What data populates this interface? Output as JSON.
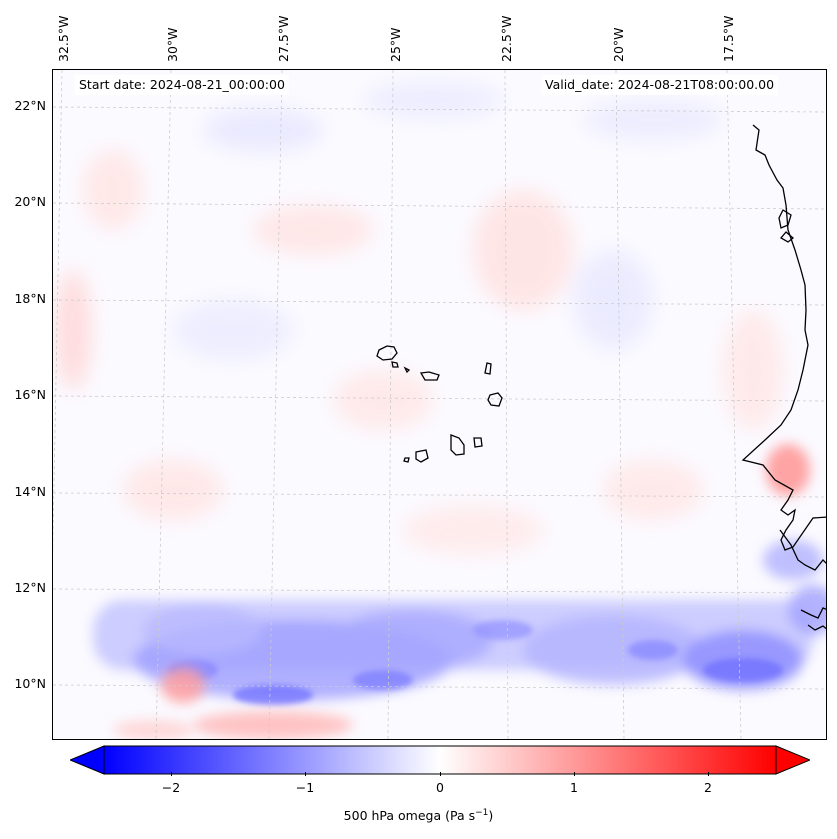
{
  "map": {
    "lon_labels": [
      "32.5°W",
      "30°W",
      "27.5°W",
      "25°W",
      "22.5°W",
      "20°W",
      "17.5°W"
    ],
    "lat_labels": [
      "22°N",
      "20°N",
      "18°N",
      "16°N",
      "14°N",
      "12°N",
      "10°N"
    ],
    "start_date": "Start date: 2024-08-21_00:00:00",
    "valid_date": "Valid_date: 2024-08-21T08:00:00.00",
    "variable": "500 hPa omega",
    "units": "Pa s",
    "units_exponent": "−1"
  },
  "colorbar": {
    "range": [
      -2.5,
      2.5
    ],
    "extend": "both",
    "tick_labels": [
      "−2",
      "−1",
      "0",
      "1",
      "2"
    ],
    "tick_values": [
      -2,
      -1,
      0,
      1,
      2
    ],
    "colors": {
      "min": "#0000ff",
      "mid": "#ffffff",
      "max": "#ff0000"
    }
  },
  "features": {
    "coastline_color": "#000000",
    "gridline_color": "#cccccc"
  }
}
